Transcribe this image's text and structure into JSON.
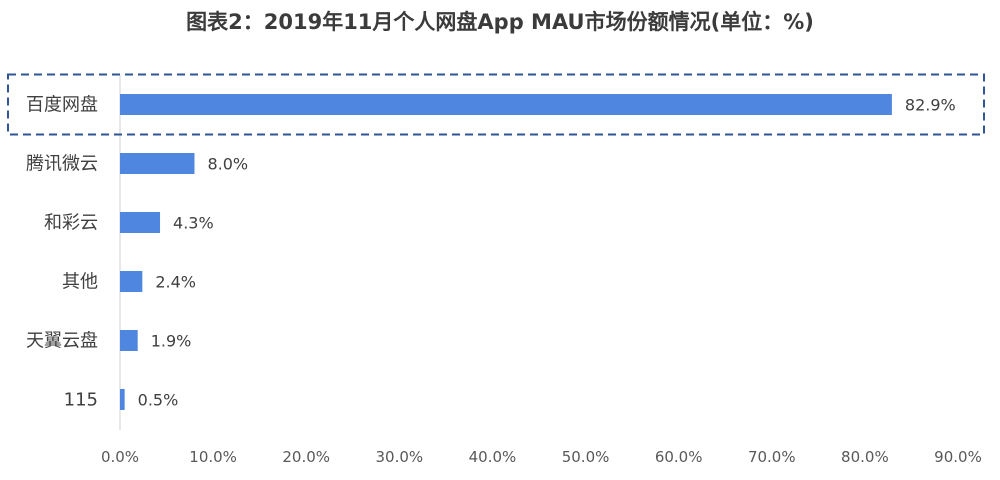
{
  "chart_data": {
    "type": "bar",
    "orientation": "horizontal",
    "title": "图表2：2019年11月个人网盘App MAU市场份额情况(单位：%)",
    "categories": [
      "百度网盘",
      "腾讯微云",
      "和彩云",
      "其他",
      "天翼云盘",
      "115"
    ],
    "values": [
      82.9,
      8.0,
      4.3,
      2.4,
      1.9,
      0.5
    ],
    "value_labels": [
      "82.9%",
      "8.0%",
      "4.3%",
      "2.4%",
      "1.9%",
      "0.5%"
    ],
    "xlim": [
      0,
      90
    ],
    "x_ticks": [
      "0.0%",
      "10.0%",
      "20.0%",
      "30.0%",
      "40.0%",
      "50.0%",
      "60.0%",
      "70.0%",
      "80.0%",
      "90.0%"
    ],
    "xlabel": "",
    "ylabel": "",
    "grid": false,
    "highlight_category": "百度网盘",
    "colors": {
      "bar": "#4f86e0",
      "highlight_border": "#2f5597",
      "axis": "#d0d0d0",
      "text": "#404040"
    }
  }
}
